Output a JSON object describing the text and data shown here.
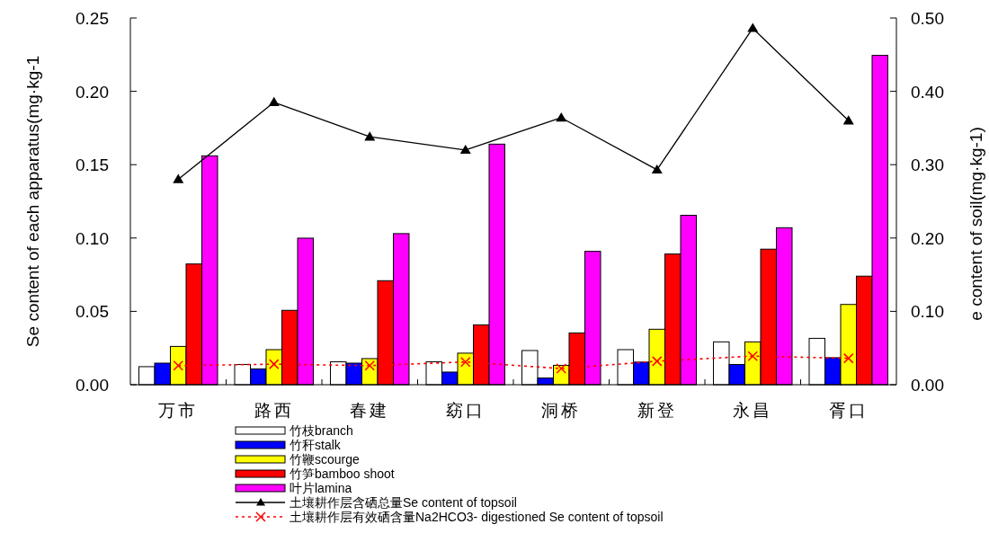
{
  "chart_data": {
    "type": "bar",
    "ylabel": "Se content of each apparatus(mg·kg-1",
    "y2label": "e content of soil(mg·kg-1)",
    "categories": [
      "万市",
      "路西",
      "春建",
      "窈口",
      "洞桥",
      "新登",
      "永昌",
      "胥口"
    ],
    "series": [
      {
        "name": "竹枝branch",
        "color": "#ffffff",
        "values": [
          0.0123,
          0.0138,
          0.0156,
          0.0156,
          0.0233,
          0.0239,
          0.0292,
          0.0316
        ]
      },
      {
        "name": "竹秆stalk",
        "color": "#0000ff",
        "values": [
          0.0147,
          0.0108,
          0.0147,
          0.0086,
          0.0046,
          0.0154,
          0.0138,
          0.0184
        ]
      },
      {
        "name": "竹鞭scourge",
        "color": "#ffff00",
        "values": [
          0.0261,
          0.0239,
          0.0178,
          0.0215,
          0.0132,
          0.0378,
          0.0292,
          0.0547
        ]
      },
      {
        "name": "竹笋bamboo shoot",
        "color": "#ff0000",
        "values": [
          0.0823,
          0.0507,
          0.0709,
          0.0408,
          0.0353,
          0.0891,
          0.0924,
          0.074
        ]
      },
      {
        "name": "叶片lamina",
        "color": "#ff00ff",
        "values": [
          0.156,
          0.0999,
          0.103,
          0.164,
          0.0909,
          0.1155,
          0.107,
          0.2245
        ]
      },
      {
        "name": "土壤耕作层含硒总量Se content of topsoil",
        "type": "line",
        "axis": "y2",
        "color": "#000000",
        "marker": "triangle",
        "line_style": "solid",
        "values": [
          0.28,
          0.385,
          0.338,
          0.32,
          0.364,
          0.293,
          0.486,
          0.36
        ]
      },
      {
        "name": "土壤耕作层有效硒含量Na2HCO3- digestioned Se content of topsoil",
        "type": "line",
        "axis": "y2",
        "color": "#ff0000",
        "marker": "cross",
        "line_style": "dashed",
        "values": [
          0.026,
          0.028,
          0.026,
          0.031,
          0.022,
          0.032,
          0.039,
          0.036
        ]
      }
    ],
    "ylim": [
      0,
      0.25
    ],
    "yticks": [
      {
        "value": 0,
        "label": "0.00"
      },
      {
        "value": 0.05,
        "label": "0.05"
      },
      {
        "value": 0.1,
        "label": "0.10"
      },
      {
        "value": 0.15,
        "label": "0.15"
      },
      {
        "value": 0.2,
        "label": "0.20"
      },
      {
        "value": 0.25,
        "label": "0.25"
      }
    ],
    "y2lim": [
      0,
      0.5
    ],
    "y2ticks": [
      {
        "value": 0,
        "label": "0.00"
      },
      {
        "value": 0.1,
        "label": "0.10"
      },
      {
        "value": 0.2,
        "label": "0.20"
      },
      {
        "value": 0.3,
        "label": "0.30"
      },
      {
        "value": 0.4,
        "label": "0.40"
      },
      {
        "value": 0.5,
        "label": "0.50"
      }
    ],
    "grid": false,
    "legend": "bottom"
  }
}
